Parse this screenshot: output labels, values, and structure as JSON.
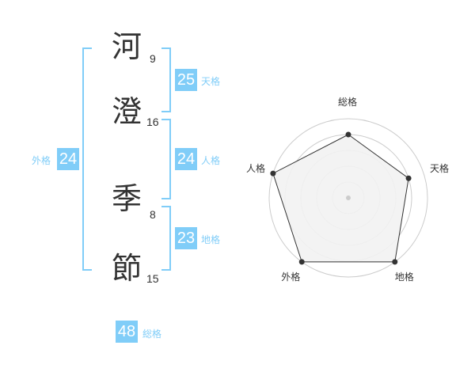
{
  "name": {
    "characters": [
      {
        "char": "河",
        "strokes": "9"
      },
      {
        "char": "澄",
        "strokes": "16"
      },
      {
        "char": "季",
        "strokes": "8"
      },
      {
        "char": "節",
        "strokes": "15"
      }
    ]
  },
  "scores": {
    "tenkaku": {
      "label": "天格",
      "value": "25"
    },
    "jinkaku": {
      "label": "人格",
      "value": "24"
    },
    "chikaku": {
      "label": "地格",
      "value": "23"
    },
    "gaikaku": {
      "label": "外格",
      "value": "24"
    },
    "soukaku": {
      "label": "総格",
      "value": "48"
    }
  },
  "colors": {
    "accent": "#80cdf8",
    "text": "#333333",
    "radar_fill": "#f2f2f2",
    "grid": "#cccccc"
  },
  "chart_data": {
    "type": "radar",
    "categories": [
      "総格",
      "天格",
      "地格",
      "外格",
      "人格"
    ],
    "values": [
      4,
      4,
      5,
      5,
      5
    ],
    "range": [
      0,
      5
    ],
    "grid_rings": 5
  }
}
